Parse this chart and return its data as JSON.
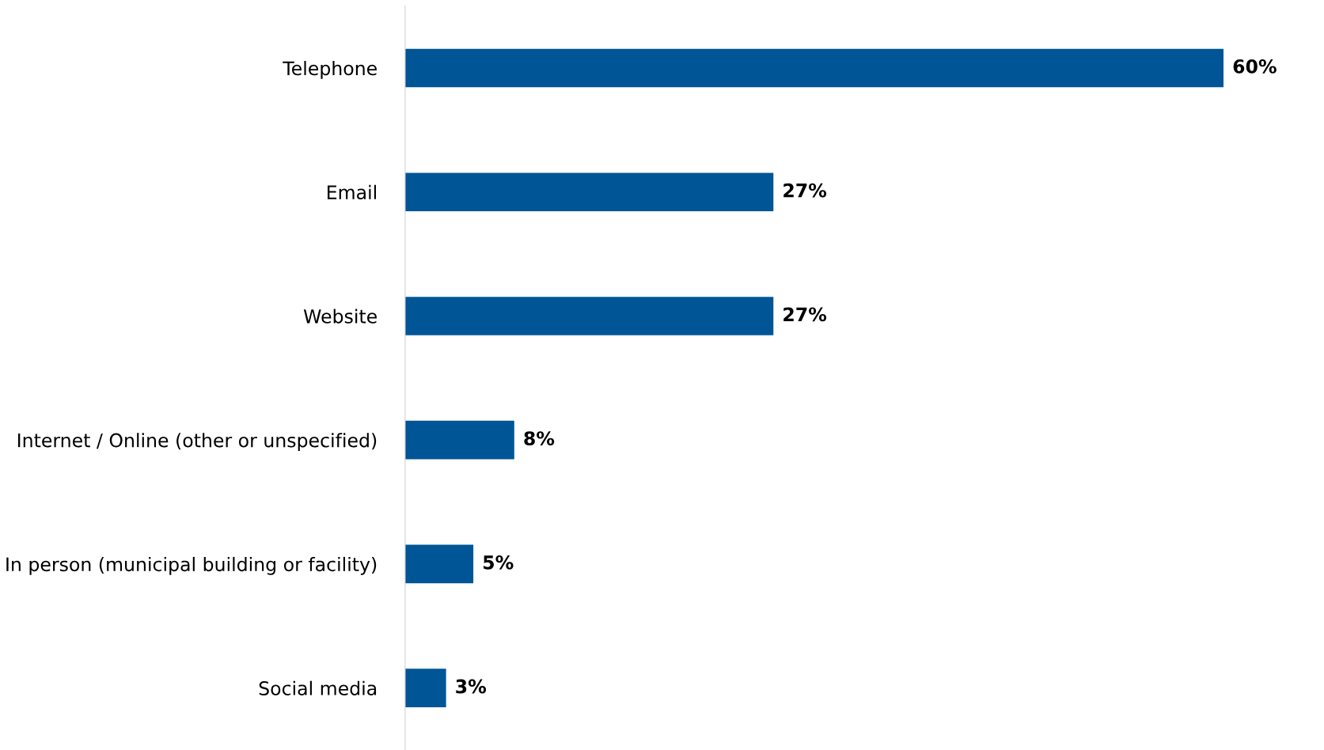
{
  "chart_data": {
    "type": "bar",
    "orientation": "horizontal",
    "categories": [
      "Telephone",
      "Email",
      "Website",
      "Internet / Online (other or unspecified)",
      "In person (municipal building or facility)",
      "Social media"
    ],
    "values": [
      60,
      27,
      27,
      8,
      5,
      3
    ],
    "value_labels": [
      "60%",
      "27%",
      "27%",
      "8%",
      "5%",
      "3%"
    ],
    "color": "#005596",
    "grid": false,
    "legend": false
  }
}
